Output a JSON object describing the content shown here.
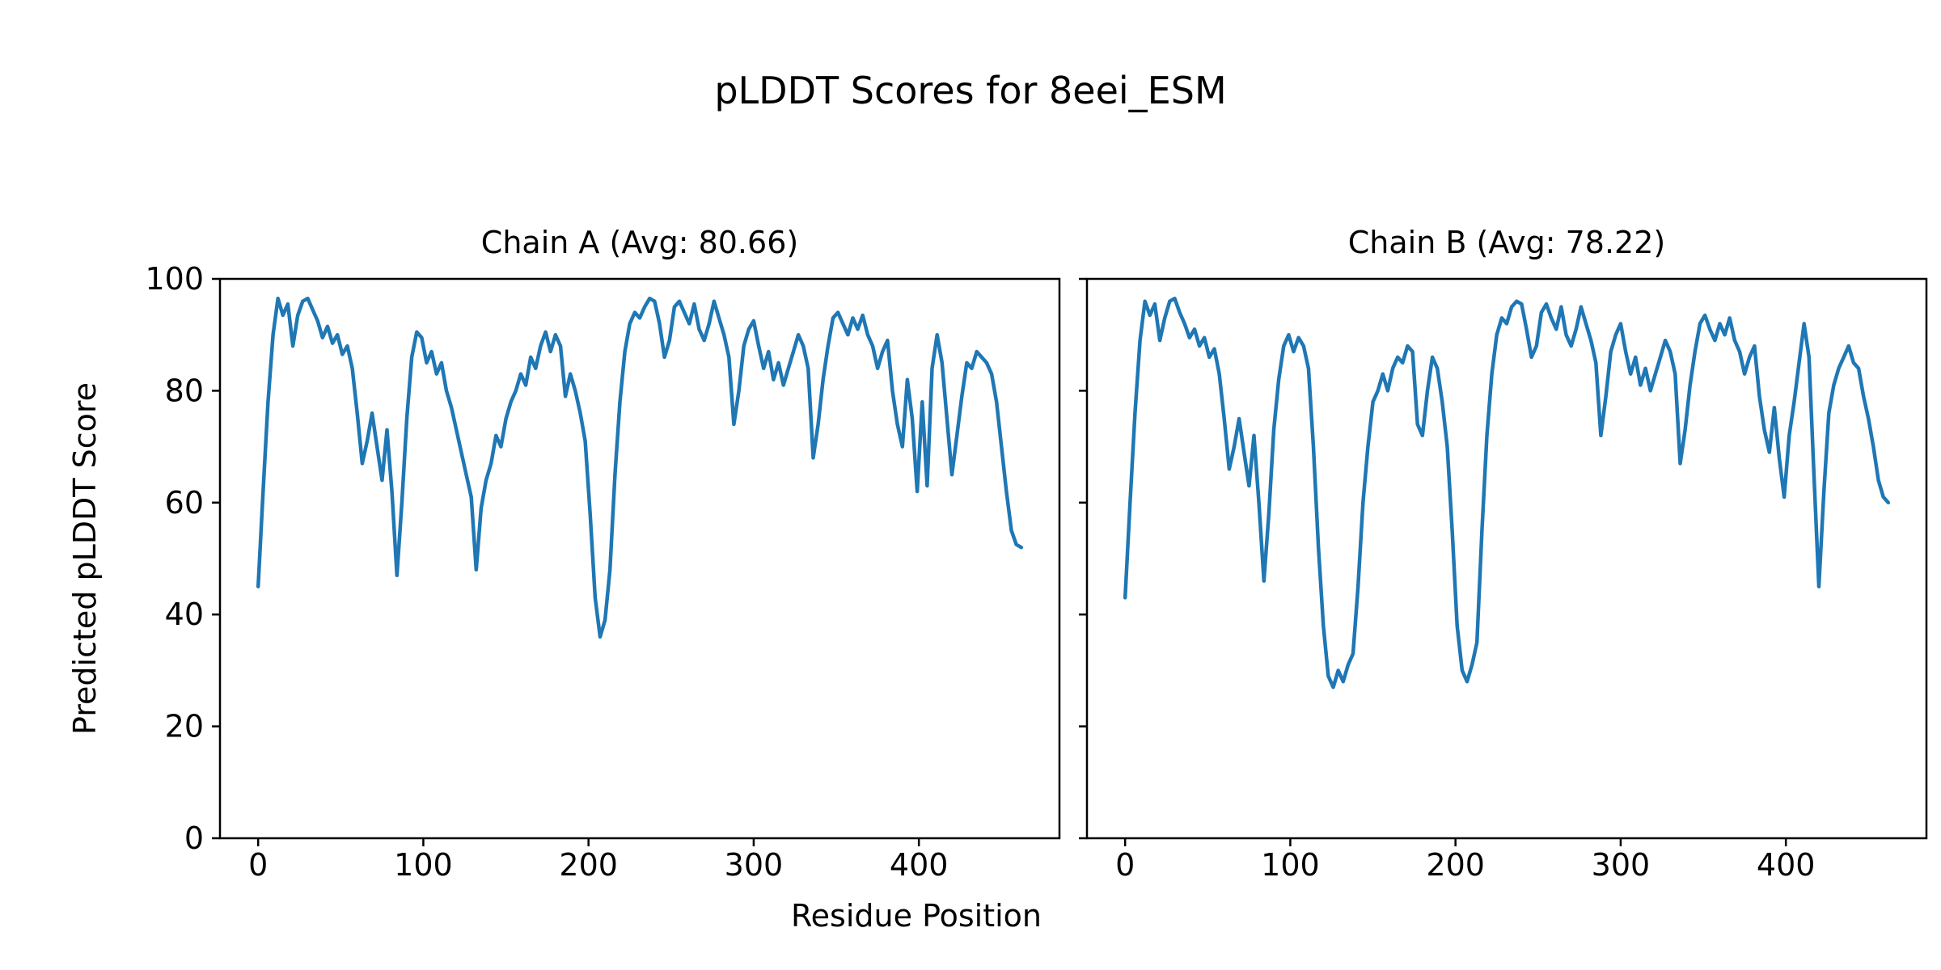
{
  "figure": {
    "title": "pLDDT Scores for 8eei_ESM",
    "background": "#ffffff",
    "text_color": "#000000"
  },
  "axes": {
    "ylabel": "Predicted pLDDT Score",
    "xlabel": "Residue Position",
    "x_ticks": [
      "0",
      "100",
      "200",
      "300",
      "400"
    ],
    "y_ticks": [
      "0",
      "20",
      "40",
      "60",
      "80",
      "100"
    ]
  },
  "chart_data": {
    "type": "line",
    "title": "pLDDT Scores for 8eei_ESM",
    "xlabel": "Residue Position",
    "ylabel": "Predicted pLDDT Score",
    "x_tick_values": [
      0,
      100,
      200,
      300,
      400
    ],
    "y_tick_values": [
      0,
      20,
      40,
      60,
      80,
      100
    ],
    "xlim": [
      -23.1,
      485.1
    ],
    "ylim": [
      0,
      100
    ],
    "grid": false,
    "legend": "none",
    "line_color": "#1f77b4",
    "x_start": 0,
    "x_step": 3,
    "series": [
      {
        "name": "Chain A",
        "subplot_title": "Chain A (Avg: 80.66)",
        "avg": 80.66,
        "values": [
          45,
          62,
          78,
          90,
          96.5,
          93.5,
          95.5,
          88,
          93.5,
          96,
          96.5,
          94.5,
          92.5,
          89.5,
          91.5,
          88.5,
          90,
          86.5,
          88,
          84,
          76,
          67,
          71,
          76,
          70,
          64,
          73,
          62,
          47,
          60,
          75,
          86,
          90.5,
          89.5,
          85,
          87,
          83,
          85,
          80,
          77,
          73,
          69,
          65,
          61,
          48,
          59,
          64,
          67,
          72,
          70,
          75,
          78,
          80,
          83,
          81,
          86,
          84,
          88,
          90.5,
          87,
          90,
          88,
          79,
          83,
          80,
          76,
          71,
          58,
          43,
          36,
          39,
          48,
          65,
          78,
          87,
          92,
          94,
          93,
          95,
          96.5,
          96,
          92,
          86,
          89,
          95,
          96,
          94,
          92,
          95.5,
          91,
          89,
          92,
          96,
          93,
          90,
          86,
          74,
          80,
          88,
          91,
          92.5,
          88,
          84,
          87,
          82,
          85,
          81,
          84,
          87,
          90,
          88,
          84,
          68,
          74,
          82,
          88,
          93,
          94,
          92,
          90,
          93,
          91,
          93.5,
          90,
          88,
          84,
          87,
          89,
          80,
          74,
          70,
          82,
          75,
          62,
          78,
          63,
          84,
          90,
          85,
          75,
          65,
          72,
          79,
          85,
          84,
          87,
          86,
          85,
          83,
          78,
          70,
          62,
          55,
          52.5,
          52
        ]
      },
      {
        "name": "Chain B",
        "subplot_title": "Chain B (Avg: 78.22)",
        "avg": 78.22,
        "values": [
          43,
          60,
          76,
          89,
          96,
          93.5,
          95.5,
          89,
          93,
          96,
          96.5,
          94,
          92,
          89.5,
          91,
          88,
          89.5,
          86,
          87.5,
          83,
          75,
          66,
          70,
          75,
          69,
          63,
          72,
          60,
          46,
          58,
          73,
          82,
          88,
          90,
          87,
          89.5,
          88,
          84,
          70,
          52,
          38,
          29,
          27,
          30,
          28,
          31,
          33,
          45,
          60,
          70,
          78,
          80,
          83,
          80,
          84,
          86,
          85,
          88,
          87,
          74,
          72,
          80,
          86,
          84,
          78,
          70,
          55,
          38,
          30,
          28,
          31,
          35,
          55,
          72,
          83,
          90,
          93,
          92,
          95,
          96,
          95.5,
          91,
          86,
          88,
          94,
          95.5,
          93,
          91,
          95,
          90,
          88,
          91,
          95,
          92,
          89,
          85,
          72,
          79,
          87,
          90,
          92,
          87,
          83,
          86,
          81,
          84,
          80,
          83,
          86,
          89,
          87,
          83,
          67,
          73,
          81,
          87,
          92,
          93.5,
          91,
          89,
          92,
          90,
          93,
          89,
          87,
          83,
          86,
          88,
          79,
          73,
          69,
          77,
          68,
          61,
          72,
          78,
          85,
          92,
          86,
          65,
          45,
          62,
          76,
          81,
          84,
          86,
          88,
          85,
          84,
          79,
          75,
          70,
          64,
          61,
          60
        ]
      }
    ]
  }
}
